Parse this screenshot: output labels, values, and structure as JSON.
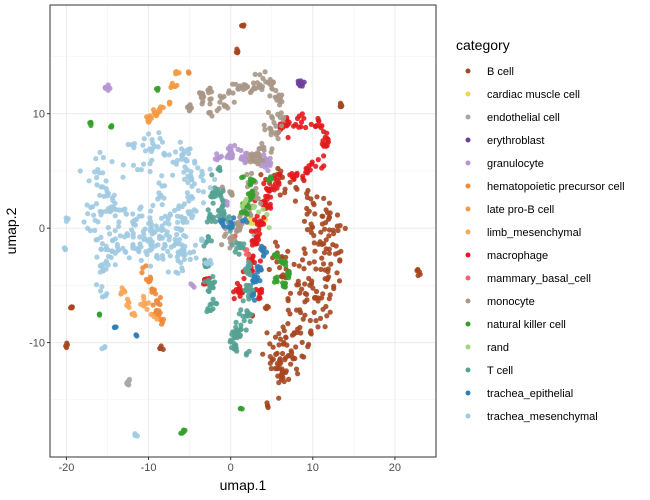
{
  "chart_data": {
    "type": "scatter",
    "xlabel": "umap.1",
    "ylabel": "umap.2",
    "xlim": [
      -22,
      25
    ],
    "ylim": [
      -20,
      19.5
    ],
    "x_ticks": [
      -20,
      -10,
      0,
      10,
      20
    ],
    "y_ticks": [
      -10,
      0,
      10
    ],
    "x_tick_labels": [
      "-20",
      "-10",
      "0",
      "10",
      "20"
    ],
    "y_tick_labels": [
      "-10",
      "0",
      "10"
    ],
    "grid": true,
    "legend": {
      "title": "category",
      "position": "right"
    },
    "series": [
      {
        "name": "B cell",
        "color": "#a6461f",
        "clusters": [
          {
            "x": [
              6,
              9,
              11,
              12,
              12.5,
              12,
              11,
              9.5,
              7.5,
              6.5,
              6,
              6.5,
              8,
              9,
              10,
              11,
              10,
              8.5,
              6.5,
              5.5
            ],
            "y": [
              4,
              3.5,
              2,
              0,
              -2.5,
              -5,
              -7.5,
              -9.5,
              -11.5,
              -12.5,
              -2,
              -4,
              -6,
              -3,
              0.5,
              -1,
              -6,
              -8,
              -10,
              -11
            ],
            "spread": 1.4,
            "count": 240
          },
          {
            "x": [
              0.7
            ],
            "y": [
              15.5
            ],
            "spread": 0.2,
            "count": 6
          },
          {
            "x": [
              1.5
            ],
            "y": [
              17.7
            ],
            "spread": 0.15,
            "count": 4
          },
          {
            "x": [
              13.5
            ],
            "y": [
              10.7
            ],
            "spread": 0.25,
            "count": 6
          },
          {
            "x": [
              -8.5
            ],
            "y": [
              -10.5
            ],
            "spread": 0.25,
            "count": 5
          },
          {
            "x": [
              -19.5
            ],
            "y": [
              -7
            ],
            "spread": 0.2,
            "count": 4
          },
          {
            "x": [
              -20
            ],
            "y": [
              -10.3
            ],
            "spread": 0.2,
            "count": 4
          },
          {
            "x": [
              22.8
            ],
            "y": [
              -3.8
            ],
            "spread": 0.3,
            "count": 6
          },
          {
            "x": [
              4.5
            ],
            "y": [
              -15.5
            ],
            "spread": 0.2,
            "count": 4
          },
          {
            "x": [
              4.3
            ],
            "y": [
              -7
            ],
            "spread": 0.2,
            "count": 4
          },
          {
            "x": [
              2.5
            ],
            "y": [
              -7.5
            ],
            "spread": 0.2,
            "count": 3
          }
        ]
      },
      {
        "name": "cardiac muscle cell",
        "color": "#f0d54e",
        "clusters": [
          {
            "x": [
              2.5,
              4
            ],
            "y": [
              0.5,
              0.8
            ],
            "spread": 0.3,
            "count": 8
          }
        ]
      },
      {
        "name": "endothelial cell",
        "color": "#a8a8a8",
        "clusters": [
          {
            "x": [
              -12.5
            ],
            "y": [
              -13.5
            ],
            "spread": 0.25,
            "count": 8
          },
          {
            "x": [
              3
            ],
            "y": [
              -0.5
            ],
            "spread": 0.3,
            "count": 6
          }
        ]
      },
      {
        "name": "erythroblast",
        "color": "#6e3f99",
        "clusters": [
          {
            "x": [
              8.5
            ],
            "y": [
              12.7
            ],
            "spread": 0.3,
            "count": 10
          }
        ]
      },
      {
        "name": "granulocyte",
        "color": "#b596d0",
        "clusters": [
          {
            "x": [
              -1.5,
              0,
              1.5,
              3,
              4.5
            ],
            "y": [
              6.2,
              6.5,
              6.2,
              6,
              5.7
            ],
            "spread": 0.55,
            "count": 70
          },
          {
            "x": [
              -15
            ],
            "y": [
              12.3
            ],
            "spread": 0.25,
            "count": 6
          },
          {
            "x": [
              -4.5
            ],
            "y": [
              -5
            ],
            "spread": 0.2,
            "count": 3
          },
          {
            "x": [
              -0.5
            ],
            "y": [
              2.2
            ],
            "spread": 0.3,
            "count": 6
          }
        ]
      },
      {
        "name": "hematopoietic precursor cell",
        "color": "#ef8a3a",
        "clusters": [
          {
            "x": [
              -10.5,
              -10,
              -9.5,
              -9,
              -9,
              -8.5
            ],
            "y": [
              -3.5,
              -4.5,
              -5.5,
              -6.5,
              -7.5,
              -8
            ],
            "spread": 0.35,
            "count": 40
          },
          {
            "x": [
              -5
            ],
            "y": [
              13.5
            ],
            "spread": 0.2,
            "count": 3
          }
        ]
      },
      {
        "name": "late pro-B cell",
        "color": "#f59b43",
        "clusters": [
          {
            "x": [
              -10,
              -9,
              -8.5
            ],
            "y": [
              9.5,
              10,
              10.5
            ],
            "spread": 0.35,
            "count": 20
          },
          {
            "x": [
              -7.5,
              -7,
              -6.5
            ],
            "y": [
              11,
              12.5,
              13.5
            ],
            "spread": 0.25,
            "count": 16
          }
        ]
      },
      {
        "name": "limb_mesenchymal",
        "color": "#f8a75a",
        "clusters": [
          {
            "x": [
              -13,
              -12.5,
              -12
            ],
            "y": [
              -5.5,
              -6.5,
              -7.5
            ],
            "spread": 0.35,
            "count": 16
          },
          {
            "x": [
              -10.5,
              -9.5,
              -9
            ],
            "y": [
              -6.5,
              -7.5,
              -8
            ],
            "spread": 0.3,
            "count": 14
          }
        ]
      },
      {
        "name": "macrophage",
        "color": "#e31a1c",
        "clusters": [
          {
            "x": [
              6.5,
              8.5,
              10.5,
              11.5,
              11,
              9.5,
              7.5,
              5.5,
              4.5,
              4,
              3.5,
              3,
              2.5,
              2,
              1,
              3.5
            ],
            "y": [
              9,
              9.5,
              9,
              7.5,
              6,
              5,
              4.5,
              4,
              3.5,
              2,
              0.5,
              -1,
              -2.5,
              -4,
              -5.5,
              -6
            ],
            "spread": 0.6,
            "count": 180
          },
          {
            "x": [
              -3
            ],
            "y": [
              -4.5
            ],
            "spread": 0.3,
            "count": 8
          }
        ]
      },
      {
        "name": "mammary_basal_cell",
        "color": "#f0646a",
        "clusters": [
          {
            "x": [
              0.5,
              2
            ],
            "y": [
              -0.5,
              -2
            ],
            "spread": 0.3,
            "count": 6
          }
        ]
      },
      {
        "name": "monocyte",
        "color": "#a99787",
        "clusters": [
          {
            "x": [
              -1,
              0.5,
              2,
              3.5,
              5,
              6,
              6,
              5,
              4,
              3,
              2.5,
              3,
              2,
              1,
              0
            ],
            "y": [
              11,
              12,
              12.5,
              12.8,
              12.5,
              11.5,
              10,
              8.5,
              7,
              6,
              4.5,
              3,
              1.5,
              0.2,
              -1
            ],
            "spread": 0.75,
            "count": 170
          },
          {
            "x": [
              -3.5
            ],
            "y": [
              11.5
            ],
            "spread": 0.4,
            "count": 14
          },
          {
            "x": [
              -2.5,
              -2.5,
              -2.5
            ],
            "y": [
              12,
              11,
              10
            ],
            "spread": 0.3,
            "count": 12
          },
          {
            "x": [
              -5
            ],
            "y": [
              10.5
            ],
            "spread": 0.3,
            "count": 10
          },
          {
            "x": [
              -1,
              0
            ],
            "y": [
              3.5,
              3
            ],
            "spread": 0.3,
            "count": 8
          }
        ]
      },
      {
        "name": "natural killer cell",
        "color": "#33a02c",
        "clusters": [
          {
            "x": [
              1.5,
              2.5,
              2.5,
              2,
              1.8
            ],
            "y": [
              4.5,
              4,
              3,
              2,
              1.5
            ],
            "spread": 0.4,
            "count": 30
          },
          {
            "x": [
              5.5,
              6.5,
              7,
              6.5,
              5.5
            ],
            "y": [
              -2.5,
              -3,
              -4,
              -5,
              -4.5
            ],
            "spread": 0.3,
            "count": 30
          },
          {
            "x": [
              4.8
            ],
            "y": [
              4.3
            ],
            "spread": 0.2,
            "count": 6
          },
          {
            "x": [
              -17
            ],
            "y": [
              9.2
            ],
            "spread": 0.2,
            "count": 4
          },
          {
            "x": [
              -14.5
            ],
            "y": [
              9
            ],
            "spread": 0.15,
            "count": 3
          },
          {
            "x": [
              -9
            ],
            "y": [
              12
            ],
            "spread": 0.15,
            "count": 3
          },
          {
            "x": [
              -16
            ],
            "y": [
              -7.5
            ],
            "spread": 0.2,
            "count": 3
          },
          {
            "x": [
              -5.8
            ],
            "y": [
              -17.8
            ],
            "spread": 0.25,
            "count": 6
          },
          {
            "x": [
              1.3
            ],
            "y": [
              -15.8
            ],
            "spread": 0.15,
            "count": 3
          }
        ]
      },
      {
        "name": "rand",
        "color": "#a2d57f",
        "clusters": [
          {
            "x": [
              1.5,
              3.5,
              4.5
            ],
            "y": [
              2,
              1.5,
              1
            ],
            "spread": 0.5,
            "count": 10
          }
        ]
      },
      {
        "name": "T cell",
        "color": "#55a293",
        "clusters": [
          {
            "x": [
              -1.5,
              -2,
              -2.5,
              -3,
              -2.8,
              -2.5,
              -2.3
            ],
            "y": [
              5,
              3,
              1,
              -1,
              -3,
              -5,
              -7
            ],
            "spread": 0.5,
            "count": 70
          },
          {
            "x": [
              -1.5,
              -1,
              0,
              1,
              2,
              2.2,
              1.8,
              1,
              0.5
            ],
            "y": [
              3,
              1.5,
              0,
              -1.5,
              -3.5,
              -5.5,
              -7.5,
              -9,
              -9.5
            ],
            "spread": 0.55,
            "count": 110
          },
          {
            "x": [
              0.5,
              2
            ],
            "y": [
              -10.5,
              -11
            ],
            "spread": 0.3,
            "count": 12
          }
        ]
      },
      {
        "name": "trachea_epithelial",
        "color": "#2f7eb8",
        "clusters": [
          {
            "x": [
              4,
              3.5,
              3,
              2.8
            ],
            "y": [
              -2,
              -3.5,
              -4.5,
              -6
            ],
            "spread": 0.35,
            "count": 35
          },
          {
            "x": [
              -1,
              0,
              1.5
            ],
            "y": [
              0.5,
              0.3,
              0.5
            ],
            "spread": 0.4,
            "count": 15
          },
          {
            "x": [
              -14
            ],
            "y": [
              -8.7
            ],
            "spread": 0.2,
            "count": 3
          },
          {
            "x": [
              -11.5
            ],
            "y": [
              -9.3
            ],
            "spread": 0.15,
            "count": 3
          }
        ]
      },
      {
        "name": "trachea_mesenchymal",
        "color": "#9ecae1",
        "clusters": [
          {
            "x": [
              -12,
              -10,
              -8,
              -6,
              -5,
              -4,
              -4.5,
              -6,
              -8,
              -10,
              -12,
              -14,
              -15,
              -16,
              -17,
              -16,
              -14,
              -12,
              -10,
              -8,
              -6,
              -5,
              -6,
              -7,
              -9,
              -11,
              -8.5
            ],
            "y": [
              6,
              6.5,
              7,
              6.5,
              5.5,
              4,
              2,
              1,
              1,
              0.5,
              0.8,
              1.5,
              3,
              5,
              1,
              -1.5,
              -1.8,
              -1.5,
              -2,
              -1.5,
              -0.5,
              -2,
              -3,
              -1,
              -1,
              -0.5,
              3.5
            ],
            "spread": 1.3,
            "count": 320
          },
          {
            "x": [
              -15,
              -15.5,
              -16,
              -15.5
            ],
            "y": [
              -2,
              -3.5,
              -5,
              -5.8
            ],
            "spread": 0.4,
            "count": 20
          },
          {
            "x": [
              -6.5,
              -6
            ],
            "y": [
              -1,
              -2
            ],
            "spread": 0.3,
            "count": 8
          },
          {
            "x": [
              -3.5,
              -2.8
            ],
            "y": [
              -1,
              -3
            ],
            "spread": 0.3,
            "count": 8
          },
          {
            "x": [
              -20
            ],
            "y": [
              0.7
            ],
            "spread": 0.15,
            "count": 3
          },
          {
            "x": [
              -20.2
            ],
            "y": [
              -1.8
            ],
            "spread": 0.15,
            "count": 3
          },
          {
            "x": [
              -15.5
            ],
            "y": [
              -10.5
            ],
            "spread": 0.2,
            "count": 3
          },
          {
            "x": [
              -11.5
            ],
            "y": [
              -18
            ],
            "spread": 0.15,
            "count": 3
          }
        ]
      }
    ]
  }
}
